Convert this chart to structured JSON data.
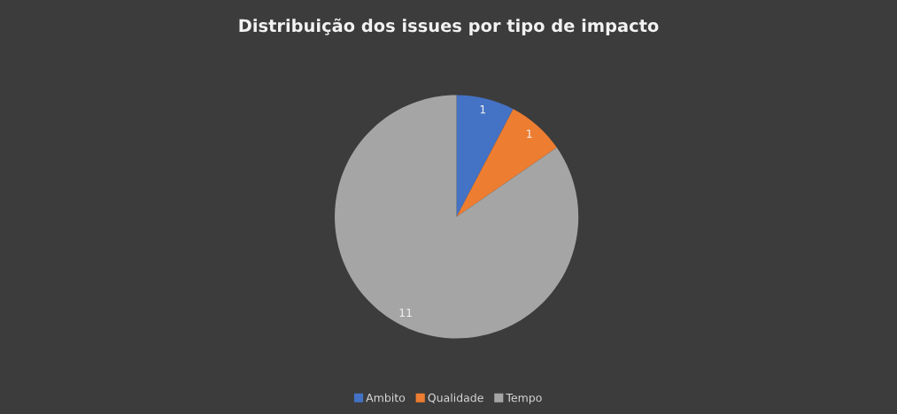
{
  "chart_data": {
    "type": "pie",
    "title": "Distribuição dos issues por tipo de impacto",
    "categories": [
      "Ambito",
      "Qualidade",
      "Tempo"
    ],
    "values": [
      1,
      1,
      11
    ],
    "colors": [
      "#4472c4",
      "#ed7d31",
      "#a5a5a5"
    ],
    "data_labels": true,
    "legend": "bottom"
  }
}
